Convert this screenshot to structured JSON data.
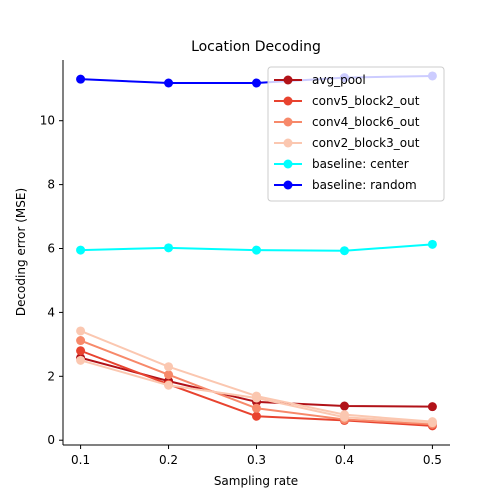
{
  "chart_data": {
    "type": "line",
    "title": "Location Decoding",
    "xlabel": "Sampling rate",
    "ylabel": "Decoding error (MSE)",
    "x": [
      0.1,
      0.2,
      0.3,
      0.4,
      0.5
    ],
    "xticks": [
      "0.1",
      "0.2",
      "0.3",
      "0.4",
      "0.5"
    ],
    "yticks": [
      "0",
      "2",
      "4",
      "6",
      "8",
      "10"
    ],
    "xlim": [
      0.08,
      0.52
    ],
    "ylim": [
      -0.15,
      11.9
    ],
    "grid": false,
    "legend_position": "top-right",
    "series": [
      {
        "name": "avg_pool",
        "color": "#b11218",
        "values": [
          2.58,
          1.85,
          1.2,
          1.07,
          1.05
        ],
        "legend": true
      },
      {
        "name": "conv5_block2_out",
        "color": "#e8432f",
        "values": [
          2.8,
          1.75,
          0.75,
          0.62,
          0.45
        ],
        "legend": true
      },
      {
        "name": "conv4_block6_out",
        "color": "#f7896a",
        "values": [
          3.12,
          2.05,
          1.0,
          0.65,
          0.5
        ],
        "legend": true
      },
      {
        "name": "conv2_block3_out",
        "color": "#fbc7b0",
        "values": [
          3.42,
          2.3,
          1.38,
          0.8,
          0.58
        ],
        "legend": true
      },
      {
        "name": "",
        "color": "#fbc7b0",
        "values": [
          2.5,
          1.72,
          1.32,
          0.72,
          0.55
        ],
        "legend": false
      },
      {
        "name": "baseline: center",
        "color": "#00ffff",
        "values": [
          5.95,
          6.02,
          5.95,
          5.93,
          6.13
        ],
        "legend": true
      },
      {
        "name": "baseline: random",
        "color": "#0000ff",
        "values": [
          11.3,
          11.18,
          11.18,
          11.35,
          11.4
        ],
        "legend": true
      }
    ]
  }
}
